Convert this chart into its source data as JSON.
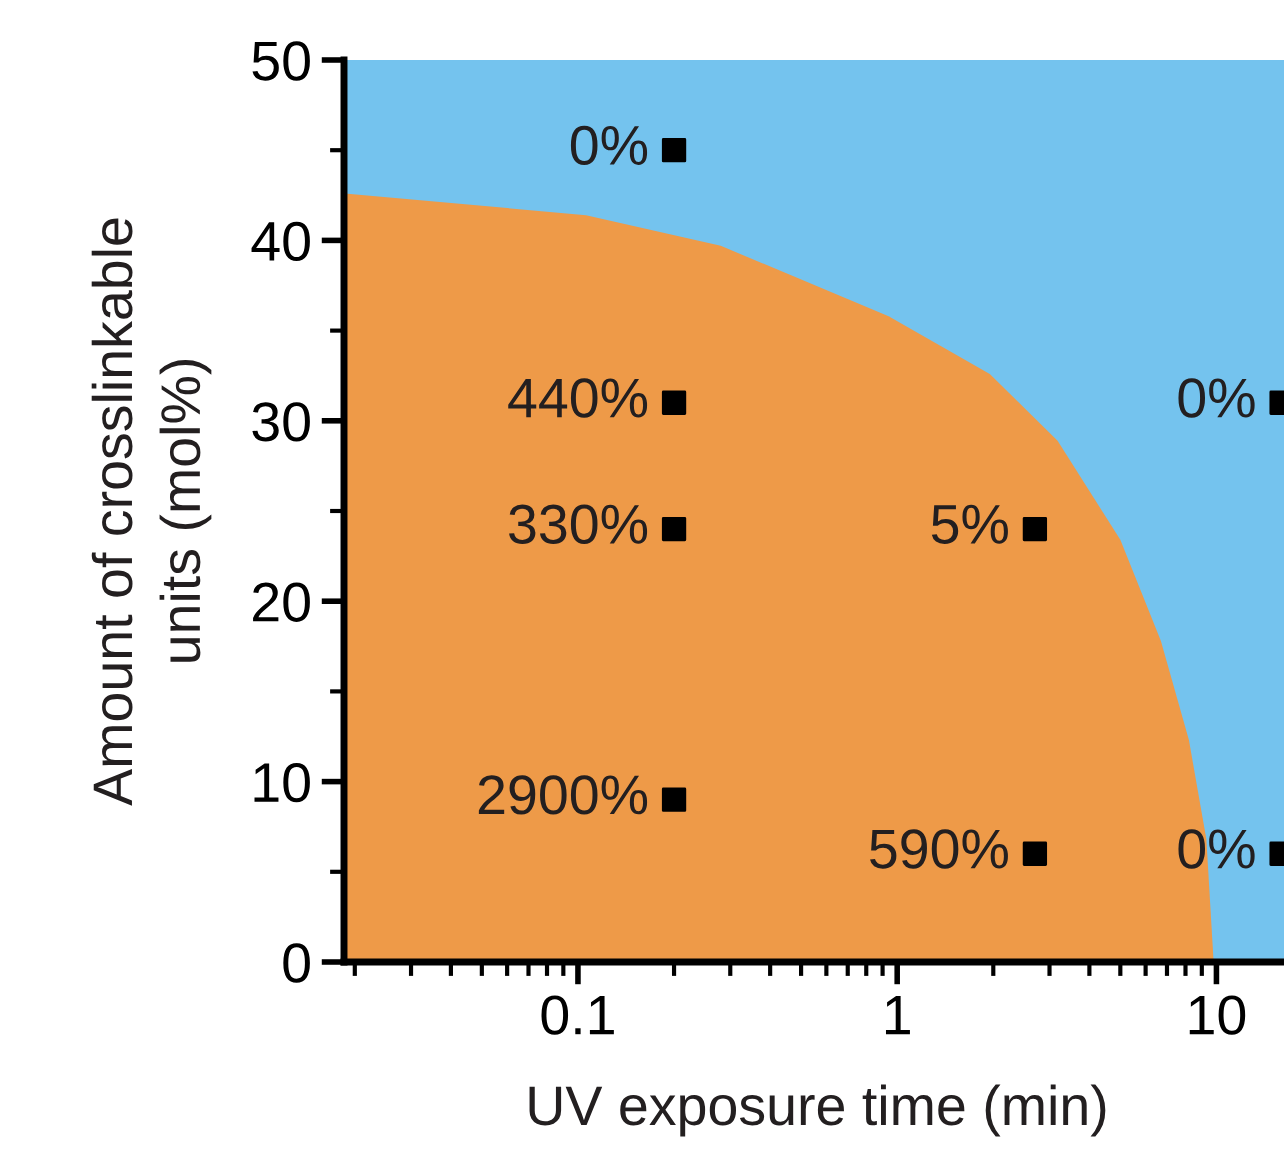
{
  "chart_data": {
    "type": "scatter",
    "xlabel": "UV exposure time (min)",
    "ylabel": "Amount of crosslinkable\nunits (mol%)",
    "log": "x",
    "xlim": [
      0.0185,
      17
    ],
    "ylim": [
      0,
      50
    ],
    "xticks": [
      0.1,
      1,
      10
    ],
    "yticks": [
      0,
      10,
      20,
      30,
      40,
      50
    ],
    "grid": false,
    "bands": [
      {
        "axis": "x",
        "from": 0.0185,
        "to": 17,
        "color": "#74c3ee"
      }
    ],
    "series": [
      {
        "type": "area",
        "color": "#ee9a48",
        "x": [
          0.0186,
          0.106,
          0.28,
          0.94,
          1.95,
          3.18,
          5.0,
          6.7,
          8.2,
          9.3,
          9.8
        ],
        "values": [
          42.6,
          41.4,
          39.7,
          35.8,
          32.6,
          28.9,
          23.4,
          17.8,
          12.3,
          6.8,
          0
        ]
      },
      {
        "color": "#000000",
        "marker": "square",
        "x": [
          0.2,
          0.2,
          0.2,
          0.2,
          2.7,
          2.7,
          16,
          16
        ],
        "values": [
          45,
          31,
          24,
          9,
          24,
          6,
          31,
          6
        ]
      }
    ],
    "annotations": [
      {
        "text": "0%",
        "x": 0.2,
        "y": 45
      },
      {
        "text": "440%",
        "x": 0.2,
        "y": 31
      },
      {
        "text": "330%",
        "x": 0.2,
        "y": 24
      },
      {
        "text": "2900%",
        "x": 0.2,
        "y": 9
      },
      {
        "text": "5%",
        "x": 2.7,
        "y": 24
      },
      {
        "text": "590%",
        "x": 2.7,
        "y": 6
      },
      {
        "text": "0%",
        "x": 16,
        "y": 31
      },
      {
        "text": "0%",
        "x": 16,
        "y": 6
      }
    ]
  }
}
